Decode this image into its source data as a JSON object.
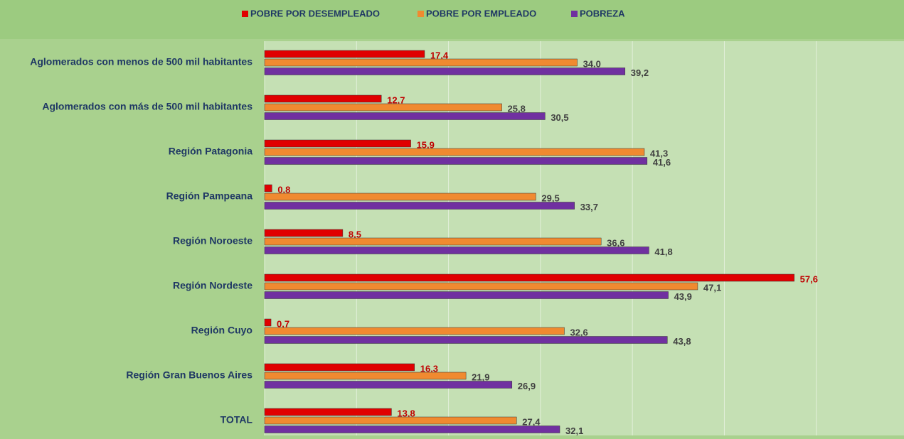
{
  "chart_data": {
    "type": "bar",
    "orientation": "horizontal",
    "categories": [
      "Aglomerados con menos de 500 mil habitantes",
      "Aglomerados con más de 500 mil habitantes",
      "Región Patagonia",
      "Región Pampeana",
      "Región Noroeste",
      "Región Nordeste",
      "Región Cuyo",
      "Región Gran Buenos Aires",
      "TOTAL"
    ],
    "series": [
      {
        "name": "POBRE POR DESEMPLEADO",
        "color": "#e00000",
        "label_color": "#c00000",
        "values": [
          17.4,
          12.7,
          15.9,
          0.8,
          8.5,
          57.6,
          0.7,
          16.3,
          13.8
        ],
        "value_labels": [
          "17,4",
          "12,7",
          "15,9",
          "0,8",
          "8,5",
          "57,6",
          "0,7",
          "16,3",
          "13,8"
        ]
      },
      {
        "name": "POBRE POR EMPLEADO",
        "color": "#f08a30",
        "label_color": "#404040",
        "values": [
          34.0,
          25.8,
          41.3,
          29.5,
          36.6,
          47.1,
          32.6,
          21.9,
          27.4
        ],
        "value_labels": [
          "34.0",
          "25,8",
          "41,3",
          "29,5",
          "36,6",
          "47,1",
          "32,6",
          "21,9",
          "27,4"
        ]
      },
      {
        "name": "POBREZA",
        "color": "#7030a0",
        "label_color": "#404040",
        "values": [
          39.2,
          30.5,
          41.6,
          33.7,
          41.8,
          43.9,
          43.8,
          26.9,
          32.1
        ],
        "value_labels": [
          "39,2",
          "30,5",
          "41,6",
          "33,7",
          "41,8",
          "43,9",
          "43,8",
          "26,9",
          "32,1"
        ]
      }
    ],
    "xlim": [
      0,
      70
    ],
    "xticks": [
      0,
      10,
      20,
      30,
      40,
      50,
      60
    ],
    "grid": true,
    "legend": "top"
  }
}
